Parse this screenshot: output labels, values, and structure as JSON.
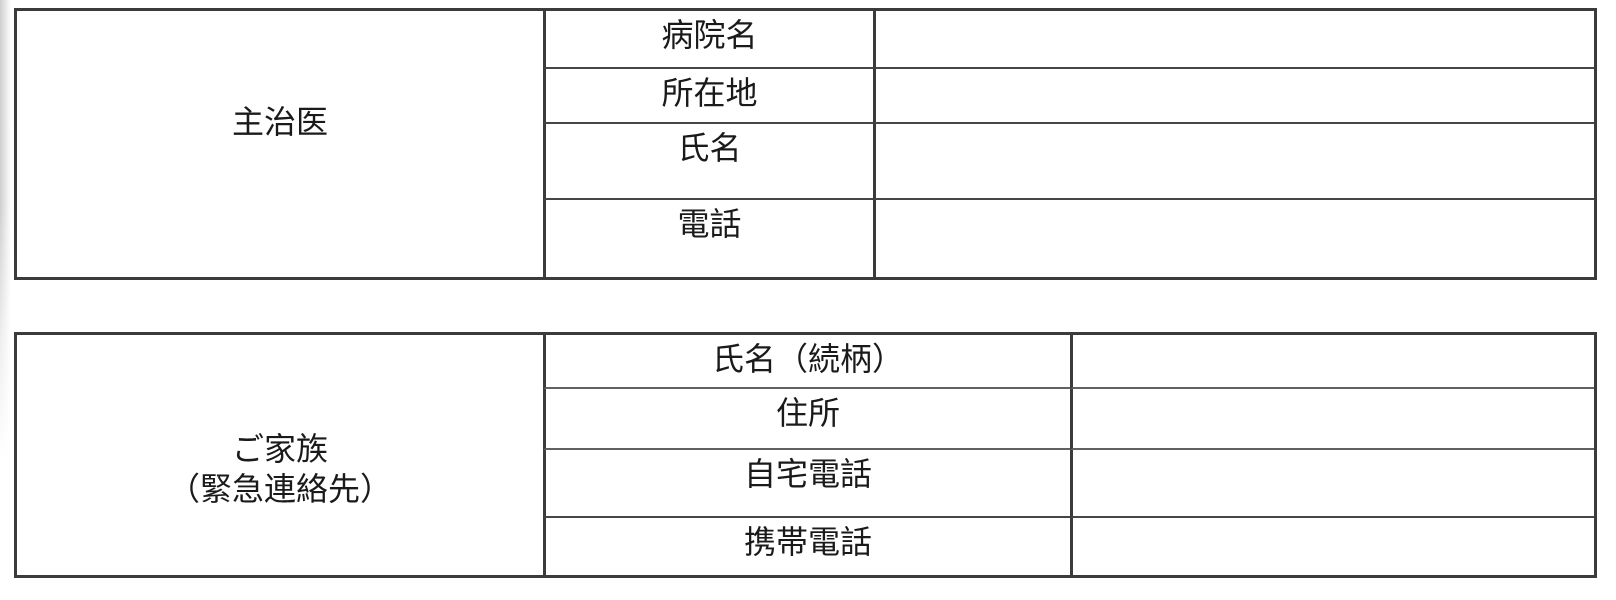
{
  "colors": {
    "page_background": "#ffffff",
    "border_outer": "#3b3b3b",
    "border_inner": "#464646",
    "border_inner_light": "#616161",
    "text": "#1a1a1a"
  },
  "tables": [
    {
      "header": "主治医",
      "rows": [
        {
          "label": "病院名",
          "value": ""
        },
        {
          "label": "所在地",
          "value": ""
        },
        {
          "label": "氏名",
          "value": ""
        },
        {
          "label": "電話",
          "value": ""
        }
      ]
    },
    {
      "header_line1": "ご家族",
      "header_line2": "（緊急連絡先）",
      "rows": [
        {
          "label": "氏名（続柄）",
          "value": ""
        },
        {
          "label": "住所",
          "value": ""
        },
        {
          "label": "自宅電話",
          "value": ""
        },
        {
          "label": "携帯電話",
          "value": ""
        }
      ]
    }
  ]
}
